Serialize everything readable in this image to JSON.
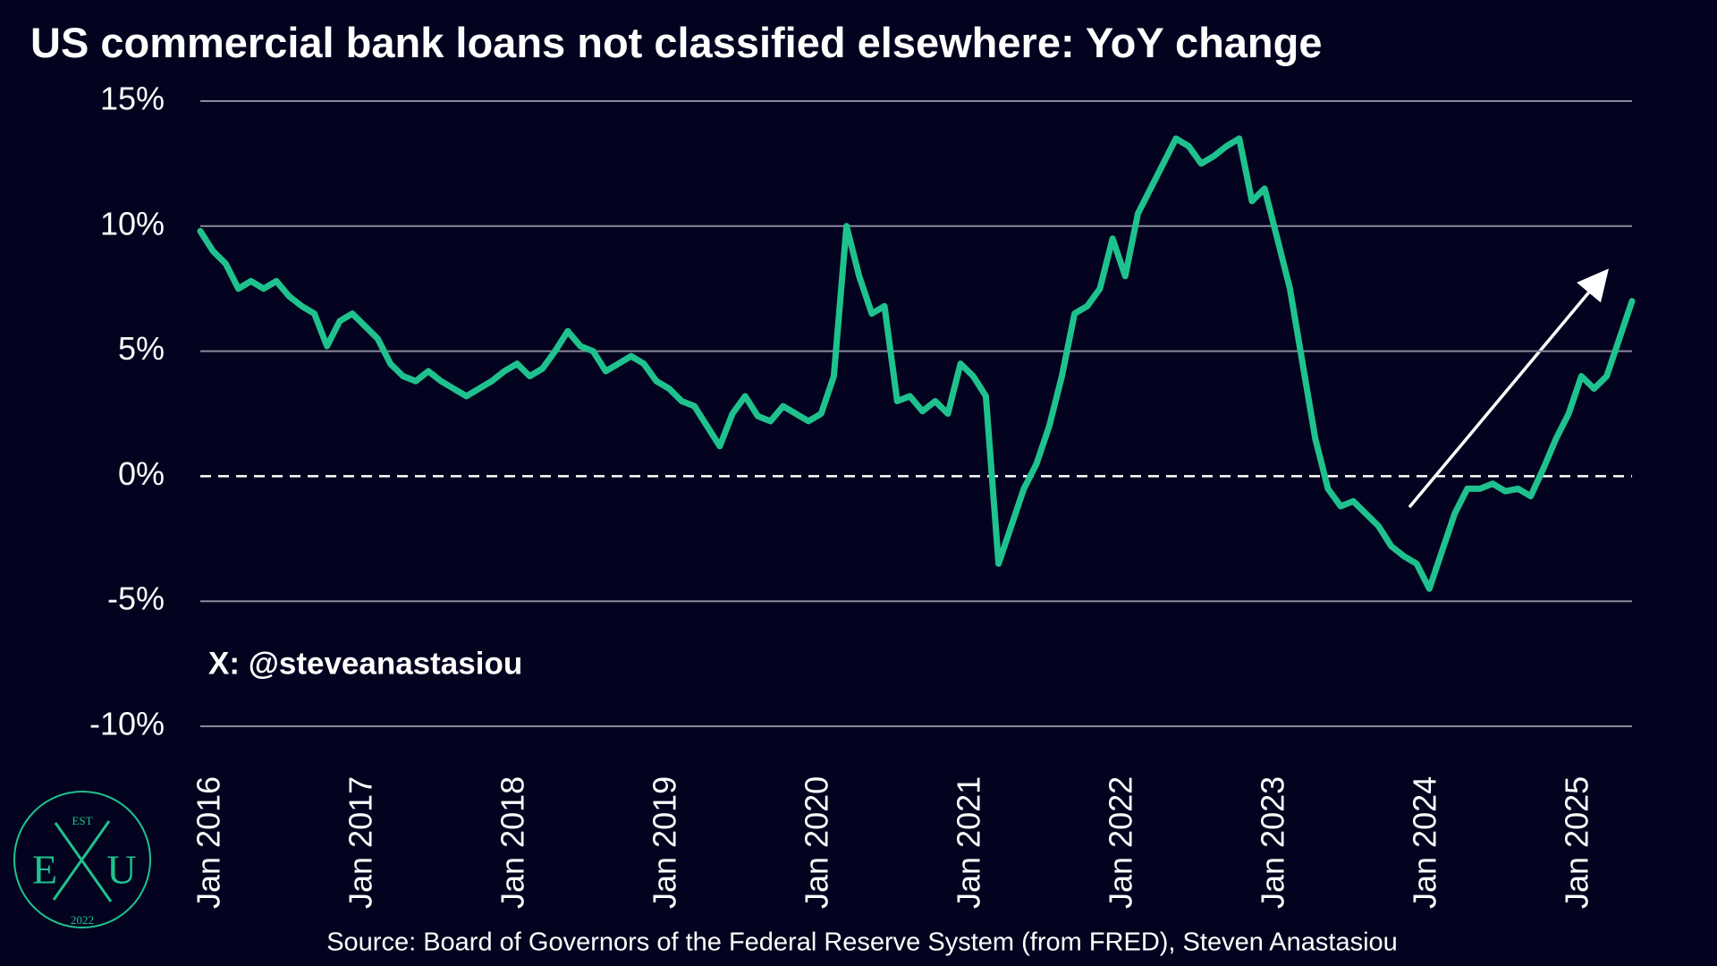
{
  "chart_data": {
    "type": "line",
    "title": "US commercial bank loans not classified elsewhere: YoY change",
    "x": [
      "2016-01",
      "2016-02",
      "2016-03",
      "2016-04",
      "2016-05",
      "2016-06",
      "2016-07",
      "2016-08",
      "2016-09",
      "2016-10",
      "2016-11",
      "2016-12",
      "2017-01",
      "2017-02",
      "2017-03",
      "2017-04",
      "2017-05",
      "2017-06",
      "2017-07",
      "2017-08",
      "2017-09",
      "2017-10",
      "2017-11",
      "2017-12",
      "2018-01",
      "2018-02",
      "2018-03",
      "2018-04",
      "2018-05",
      "2018-06",
      "2018-07",
      "2018-08",
      "2018-09",
      "2018-10",
      "2018-11",
      "2018-12",
      "2019-01",
      "2019-02",
      "2019-03",
      "2019-04",
      "2019-05",
      "2019-06",
      "2019-07",
      "2019-08",
      "2019-09",
      "2019-10",
      "2019-11",
      "2019-12",
      "2020-01",
      "2020-02",
      "2020-03",
      "2020-04",
      "2020-05",
      "2020-06",
      "2020-07",
      "2020-08",
      "2020-09",
      "2020-10",
      "2020-11",
      "2020-12",
      "2021-01",
      "2021-02",
      "2021-03",
      "2021-04",
      "2021-05",
      "2021-06",
      "2021-07",
      "2021-08",
      "2021-09",
      "2021-10",
      "2021-11",
      "2021-12",
      "2022-01",
      "2022-02",
      "2022-03",
      "2022-04",
      "2022-05",
      "2022-06",
      "2022-07",
      "2022-08",
      "2022-09",
      "2022-10",
      "2022-11",
      "2022-12",
      "2023-01",
      "2023-02",
      "2023-03",
      "2023-04",
      "2023-05",
      "2023-06",
      "2023-07",
      "2023-08",
      "2023-09",
      "2023-10",
      "2023-11",
      "2023-12",
      "2024-01",
      "2024-02",
      "2024-03",
      "2024-04",
      "2024-05",
      "2024-06",
      "2024-07",
      "2024-08",
      "2024-09",
      "2024-10",
      "2024-11",
      "2024-12",
      "2025-01",
      "2025-02",
      "2025-03",
      "2025-04",
      "2025-05",
      "2025-06"
    ],
    "values": [
      9.8,
      9.0,
      8.5,
      7.5,
      7.8,
      7.5,
      7.8,
      7.2,
      6.8,
      6.5,
      5.2,
      6.2,
      6.5,
      6.0,
      5.5,
      4.5,
      4.0,
      3.8,
      4.2,
      3.8,
      3.5,
      3.2,
      3.5,
      3.8,
      4.2,
      4.5,
      4.0,
      4.3,
      5.0,
      5.8,
      5.2,
      5.0,
      4.2,
      4.5,
      4.8,
      4.5,
      3.8,
      3.5,
      3.0,
      2.8,
      2.0,
      1.2,
      2.5,
      3.2,
      2.4,
      2.2,
      2.8,
      2.5,
      2.2,
      2.5,
      4.0,
      10.0,
      8.0,
      6.5,
      6.8,
      3.0,
      3.2,
      2.6,
      3.0,
      2.5,
      4.5,
      4.0,
      3.2,
      -3.5,
      -2.0,
      -0.5,
      0.5,
      2.0,
      4.0,
      6.5,
      6.8,
      7.5,
      9.5,
      8.0,
      10.5,
      11.5,
      12.5,
      13.5,
      13.2,
      12.5,
      12.8,
      13.2,
      13.5,
      11.0,
      11.5,
      9.5,
      7.5,
      4.5,
      1.5,
      -0.5,
      -1.2,
      -1.0,
      -1.5,
      -2.0,
      -2.8,
      -3.2,
      -3.5,
      -4.5,
      -3.0,
      -1.5,
      -0.5,
      -0.5,
      -0.3,
      -0.6,
      -0.5,
      -0.8,
      0.3,
      1.5,
      2.5,
      4.0,
      3.5,
      4.0,
      5.5,
      7.0
    ],
    "color": "#1fc28e",
    "xlim": [
      "2016-01",
      "2025-06"
    ],
    "xticks": [
      {
        "value": "2016-01",
        "label": "Jan 2016"
      },
      {
        "value": "2017-01",
        "label": "Jan 2017"
      },
      {
        "value": "2018-01",
        "label": "Jan 2018"
      },
      {
        "value": "2019-01",
        "label": "Jan 2019"
      },
      {
        "value": "2020-01",
        "label": "Jan 2020"
      },
      {
        "value": "2021-01",
        "label": "Jan 2021"
      },
      {
        "value": "2022-01",
        "label": "Jan 2022"
      },
      {
        "value": "2023-01",
        "label": "Jan 2023"
      },
      {
        "value": "2024-01",
        "label": "Jan 2024"
      },
      {
        "value": "2025-01",
        "label": "Jan 2025"
      }
    ],
    "ylim": [
      -10,
      15
    ],
    "yticks": [
      {
        "value": 15,
        "label": "15%"
      },
      {
        "value": 10,
        "label": "10%"
      },
      {
        "value": 5,
        "label": "5%"
      },
      {
        "value": 0,
        "label": "0%"
      },
      {
        "value": -5,
        "label": "-5%"
      },
      {
        "value": -10,
        "label": "-10%"
      }
    ],
    "grid": true,
    "dashed_grid_at": [
      0
    ],
    "handle": "X: @steveanastasiou",
    "source": "Source: Board of Governors of the Federal Reserve System (from FRED), Steven Anastasiou",
    "logo": {
      "top": "EST",
      "left": "E",
      "right": "U",
      "bottom": "2022"
    }
  }
}
